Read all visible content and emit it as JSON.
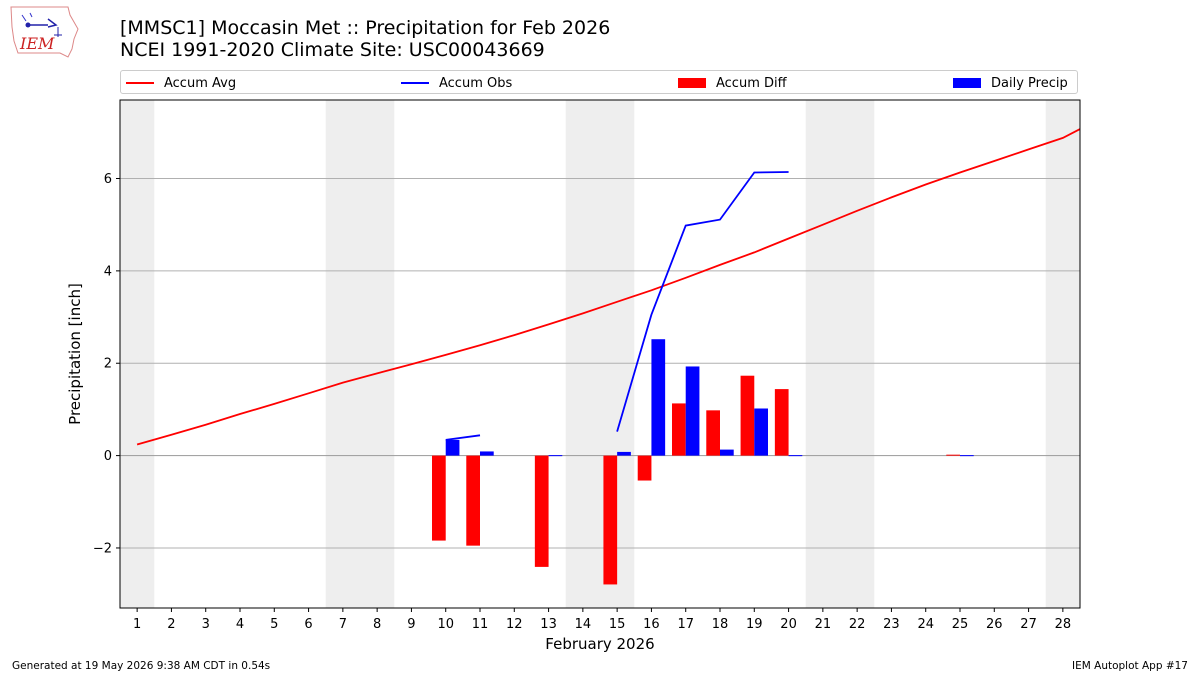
{
  "header": {
    "title_line1": "[MMSC1] Moccasin Met :: Precipitation for Feb 2026",
    "title_line2": "NCEI 1991-2020 Climate Site: USC00043669",
    "logo_text": "IEM"
  },
  "footer": {
    "left": "Generated at 19 May 2026 9:38 AM CDT in 0.54s",
    "right": "IEM Autoplot App #17"
  },
  "colors": {
    "avg": "#ff0000",
    "obs": "#0000ff",
    "diff": "#ff0000",
    "daily": "#0000ff",
    "weekend": "#eeeeee",
    "grid": "#b0b0b0"
  },
  "chart_data": {
    "type": "bar",
    "xlabel": "February 2026",
    "ylabel": "Precipitation [inch]",
    "xlim": [
      0.5,
      28.5
    ],
    "ylim": [
      -3.3,
      7.7
    ],
    "yticks": [
      -2,
      0,
      2,
      4,
      6
    ],
    "ytick_labels": [
      "−2",
      "0",
      "2",
      "4",
      "6"
    ],
    "categories": [
      "1",
      "2",
      "3",
      "4",
      "5",
      "6",
      "7",
      "8",
      "9",
      "10",
      "11",
      "12",
      "13",
      "14",
      "15",
      "16",
      "17",
      "18",
      "19",
      "20",
      "21",
      "22",
      "23",
      "24",
      "25",
      "26",
      "27",
      "28"
    ],
    "weekend_shading": [
      [
        0.5,
        1.5
      ],
      [
        6.5,
        8.5
      ],
      [
        13.5,
        15.5
      ],
      [
        20.5,
        22.5
      ],
      [
        27.5,
        28.5
      ]
    ],
    "grid": "horizontal",
    "legend": {
      "placement": "top",
      "entries": [
        "Accum Avg",
        "Accum Obs",
        "Accum Diff",
        "Daily Precip"
      ]
    },
    "series": [
      {
        "name": "Accum Avg",
        "kind": "line",
        "x": [
          1,
          2,
          3,
          4,
          5,
          6,
          7,
          8,
          9,
          10,
          11,
          12,
          13,
          14,
          15,
          16,
          17,
          18,
          19,
          20,
          21,
          22,
          23,
          24,
          25,
          26,
          27,
          28,
          28.5
        ],
        "values": [
          0.24,
          0.45,
          0.67,
          0.9,
          1.12,
          1.35,
          1.58,
          1.78,
          1.98,
          2.18,
          2.39,
          2.61,
          2.84,
          3.08,
          3.33,
          3.58,
          3.85,
          4.13,
          4.4,
          4.7,
          5.0,
          5.3,
          5.59,
          5.87,
          6.13,
          6.38,
          6.63,
          6.88,
          7.07
        ]
      },
      {
        "name": "Accum Obs",
        "kind": "line",
        "segments": [
          {
            "x": [
              10,
              11
            ],
            "values": [
              0.34,
              0.44
            ]
          },
          {
            "x": [
              15,
              16,
              17,
              18,
              19,
              20
            ],
            "values": [
              0.52,
              3.05,
              4.98,
              5.11,
              6.13,
              6.14
            ]
          }
        ]
      },
      {
        "name": "Accum Diff",
        "kind": "bar",
        "offset": -0.2,
        "x": [
          10,
          11,
          13,
          15,
          16,
          17,
          18,
          19,
          20,
          25
        ],
        "values": [
          -1.84,
          -1.95,
          -2.41,
          -2.79,
          -0.54,
          1.13,
          0.98,
          1.73,
          1.44,
          0.02
        ]
      },
      {
        "name": "Daily Precip",
        "kind": "bar",
        "offset": 0.2,
        "x": [
          10,
          11,
          13,
          15,
          16,
          17,
          18,
          19,
          20,
          25
        ],
        "values": [
          0.34,
          0.09,
          0.01,
          0.08,
          2.52,
          1.93,
          0.13,
          1.02,
          0.01,
          0.01
        ]
      }
    ]
  }
}
